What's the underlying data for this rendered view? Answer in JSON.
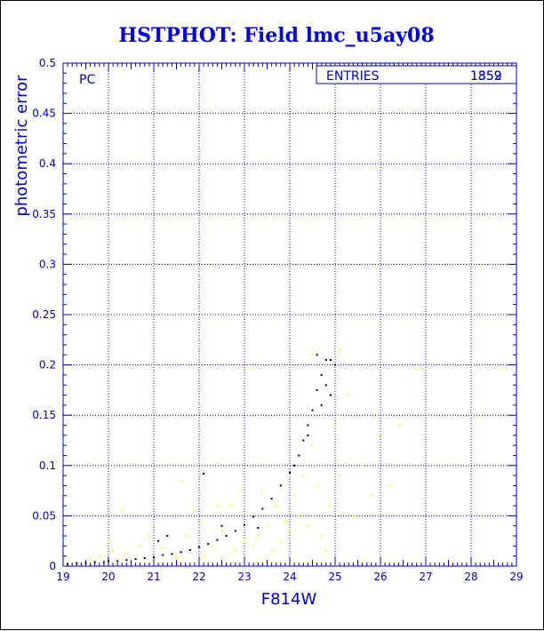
{
  "colors": {
    "axis": "#0000cc",
    "title": "#0000ee",
    "series_primary": "#000000",
    "series_secondary": "#ffff00",
    "background": "#ffffff"
  },
  "chart_data": {
    "type": "scatter",
    "title": "HSTPHOT: Field lmc_u5ay08",
    "xlabel": "F814W",
    "ylabel": "photometric error",
    "xlim": [
      19,
      29
    ],
    "ylim": [
      0,
      0.5
    ],
    "xticks": [
      "19",
      "20",
      "21",
      "22",
      "23",
      "24",
      "25",
      "26",
      "27",
      "28",
      "29"
    ],
    "yticks": [
      "0",
      "0.05",
      "0.1",
      "0.15",
      "0.2",
      "0.25",
      "0.3",
      "0.35",
      "0.4",
      "0.45",
      "0.5"
    ],
    "grid": true,
    "panel_label": "PC",
    "stats_box": {
      "label": "ENTRIES",
      "values": [
        "1852",
        "1359"
      ]
    },
    "series": [
      {
        "color": "#000000",
        "points": [
          [
            19.1,
            0.002
          ],
          [
            19.3,
            0.003
          ],
          [
            19.5,
            0.003
          ],
          [
            19.7,
            0.004
          ],
          [
            19.9,
            0.004
          ],
          [
            20.0,
            0.005
          ],
          [
            20.2,
            0.005
          ],
          [
            20.4,
            0.006
          ],
          [
            20.6,
            0.007
          ],
          [
            20.8,
            0.008
          ],
          [
            21.0,
            0.009
          ],
          [
            21.2,
            0.011
          ],
          [
            21.4,
            0.012
          ],
          [
            21.6,
            0.014
          ],
          [
            21.8,
            0.016
          ],
          [
            22.0,
            0.019
          ],
          [
            22.2,
            0.022
          ],
          [
            22.4,
            0.026
          ],
          [
            22.6,
            0.03
          ],
          [
            22.8,
            0.035
          ],
          [
            23.0,
            0.041
          ],
          [
            23.2,
            0.049
          ],
          [
            23.4,
            0.057
          ],
          [
            23.6,
            0.067
          ],
          [
            23.8,
            0.08
          ],
          [
            24.0,
            0.093
          ],
          [
            24.1,
            0.1
          ],
          [
            24.2,
            0.11
          ],
          [
            24.3,
            0.125
          ],
          [
            24.4,
            0.14
          ],
          [
            24.5,
            0.155
          ],
          [
            24.6,
            0.175
          ],
          [
            24.7,
            0.19
          ],
          [
            24.8,
            0.205
          ],
          [
            24.9,
            0.205
          ],
          [
            25.0,
            0.2
          ],
          [
            21.1,
            0.025
          ],
          [
            21.3,
            0.03
          ],
          [
            22.1,
            0.092
          ],
          [
            22.5,
            0.04
          ],
          [
            23.3,
            0.038
          ],
          [
            24.6,
            0.21
          ],
          [
            24.8,
            0.18
          ],
          [
            24.9,
            0.17
          ],
          [
            24.7,
            0.16
          ],
          [
            24.4,
            0.13
          ]
        ]
      },
      {
        "color": "#ffff00",
        "points": [
          [
            19.8,
            0.01
          ],
          [
            20.1,
            0.015
          ],
          [
            20.4,
            0.012
          ],
          [
            20.7,
            0.02
          ],
          [
            20.9,
            0.03
          ],
          [
            21.0,
            0.04
          ],
          [
            21.2,
            0.018
          ],
          [
            21.5,
            0.008
          ],
          [
            21.7,
            0.03
          ],
          [
            21.9,
            0.055
          ],
          [
            22.0,
            0.045
          ],
          [
            22.1,
            0.01
          ],
          [
            22.3,
            0.02
          ],
          [
            22.5,
            0.035
          ],
          [
            22.7,
            0.06
          ],
          [
            22.8,
            0.015
          ],
          [
            22.9,
            0.075
          ],
          [
            23.0,
            0.025
          ],
          [
            23.2,
            0.02
          ],
          [
            23.3,
            0.03
          ],
          [
            23.5,
            0.04
          ],
          [
            23.6,
            0.015
          ],
          [
            23.7,
            0.06
          ],
          [
            23.8,
            0.025
          ],
          [
            23.9,
            0.045
          ],
          [
            24.0,
            0.035
          ],
          [
            24.1,
            0.07
          ],
          [
            24.2,
            0.05
          ],
          [
            24.3,
            0.09
          ],
          [
            24.4,
            0.04
          ],
          [
            24.5,
            0.12
          ],
          [
            24.6,
            0.08
          ],
          [
            24.7,
            0.03
          ],
          [
            24.9,
            0.06
          ],
          [
            25.0,
            0.14
          ],
          [
            25.1,
            0.09
          ],
          [
            25.3,
            0.17
          ],
          [
            25.4,
            0.05
          ],
          [
            25.6,
            0.1
          ],
          [
            25.8,
            0.07
          ],
          [
            26.0,
            0.13
          ],
          [
            26.2,
            0.08
          ],
          [
            26.4,
            0.14
          ],
          [
            24.5,
            0.21
          ],
          [
            25.1,
            0.215
          ],
          [
            21.6,
            0.085
          ],
          [
            20.3,
            0.055
          ],
          [
            22.4,
            0.06
          ],
          [
            23.4,
            0.075
          ],
          [
            24.8,
            0.015
          ],
          [
            19.6,
            0.006
          ],
          [
            20.0,
            0.025
          ]
        ]
      }
    ]
  }
}
